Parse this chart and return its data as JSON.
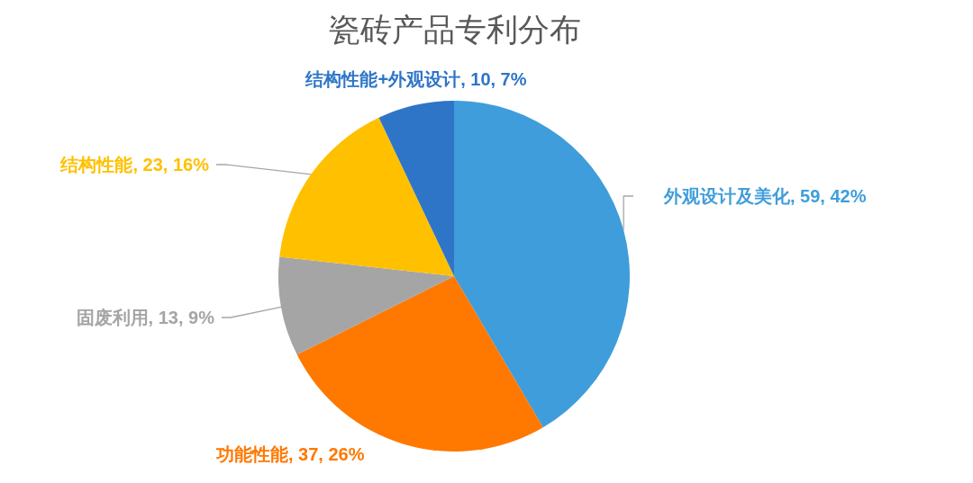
{
  "chart_data": {
    "type": "pie",
    "title": "瓷砖产品专利分布",
    "categories": [
      "外观设计及美化",
      "功能性能",
      "固废利用",
      "结构性能",
      "结构性能+外观设计"
    ],
    "values": [
      59,
      37,
      13,
      23,
      10
    ],
    "colors": [
      "#3f9ddb",
      "#ff7800",
      "#a5a5a5",
      "#ffc000",
      "#2e75c8"
    ],
    "value_labels": [
      "59, 42%",
      "37, 26%",
      "13, 9%",
      "23, 16%",
      "10, 7%"
    ]
  }
}
